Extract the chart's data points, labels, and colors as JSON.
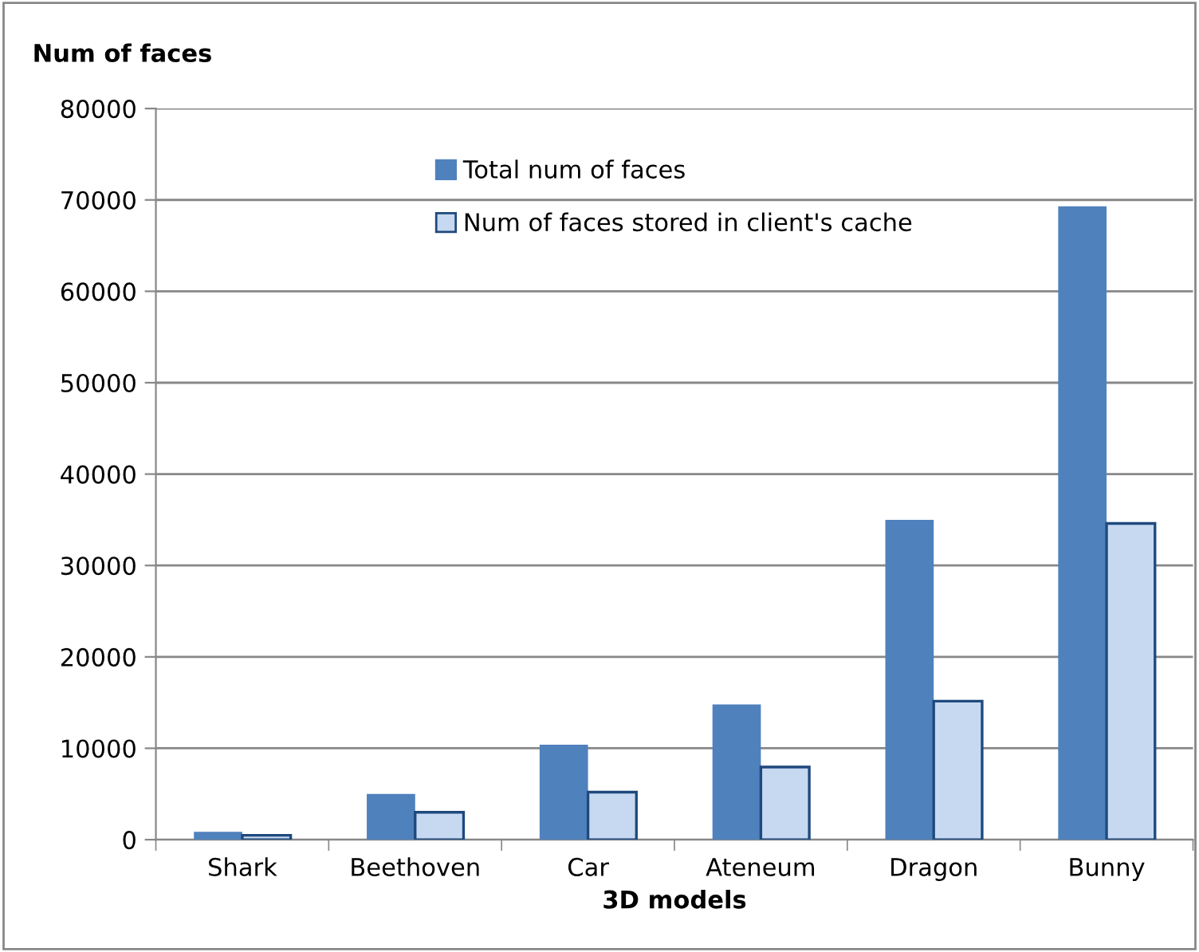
{
  "chart_data": {
    "type": "bar",
    "ylabel": "Num of faces",
    "xlabel": "3D models",
    "categories": [
      "Shark",
      "Beethoven",
      "Car",
      "Ateneum",
      "Dragon",
      "Bunny"
    ],
    "series": [
      {
        "name": "Total num of faces",
        "color": "#4f81bd",
        "values": [
          850,
          5000,
          10400,
          14800,
          35000,
          69300
        ]
      },
      {
        "name": "Num of faces stored in client's cache",
        "color": "#c6d9f1",
        "values": [
          480,
          3000,
          5200,
          7950,
          15150,
          34600
        ]
      }
    ],
    "ylim": [
      0,
      80000
    ],
    "yticks": [
      0,
      10000,
      20000,
      30000,
      40000,
      50000,
      60000,
      70000,
      80000
    ],
    "grid": "y",
    "legend": "top"
  }
}
